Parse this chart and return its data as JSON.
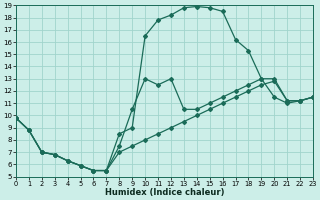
{
  "xlabel": "Humidex (Indice chaleur)",
  "xlim": [
    0,
    23
  ],
  "ylim": [
    5,
    19
  ],
  "xticks": [
    0,
    1,
    2,
    3,
    4,
    5,
    6,
    7,
    8,
    9,
    10,
    11,
    12,
    13,
    14,
    15,
    16,
    17,
    18,
    19,
    20,
    21,
    22,
    23
  ],
  "yticks": [
    5,
    6,
    7,
    8,
    9,
    10,
    11,
    12,
    13,
    14,
    15,
    16,
    17,
    18,
    19
  ],
  "bg_color": "#cceee8",
  "grid_color": "#a0d4cc",
  "line_color": "#1a6b58",
  "figsize": [
    3.2,
    2.0
  ],
  "dpi": 100,
  "lines": [
    {
      "x": [
        0,
        1,
        2,
        3,
        4,
        5,
        6,
        7,
        8,
        9,
        10,
        11,
        12,
        13,
        14,
        15,
        16,
        17,
        18,
        19,
        20,
        21,
        22,
        23
      ],
      "y": [
        9.8,
        8.8,
        7.0,
        6.8,
        6.3,
        5.9,
        5.5,
        5.5,
        7.5,
        10.5,
        13.0,
        12.5,
        13.0,
        10.5,
        10.5,
        11.0,
        11.5,
        12.0,
        12.5,
        13.0,
        13.0,
        11.2,
        11.2,
        11.5
      ]
    },
    {
      "x": [
        0,
        1,
        2,
        3,
        4,
        5,
        6,
        7,
        8,
        9,
        10,
        11,
        12,
        13,
        14,
        15,
        16,
        17,
        18,
        19,
        20,
        21,
        22,
        23
      ],
      "y": [
        9.8,
        8.8,
        7.0,
        6.8,
        6.3,
        5.9,
        5.5,
        5.5,
        8.5,
        9.0,
        16.5,
        17.8,
        18.2,
        18.8,
        18.9,
        18.8,
        18.5,
        16.2,
        15.3,
        13.0,
        11.5,
        11.0,
        11.2,
        11.5
      ]
    },
    {
      "x": [
        0,
        1,
        2,
        3,
        4,
        5,
        6,
        7,
        8,
        9,
        10,
        11,
        12,
        13,
        14,
        15,
        16,
        17,
        18,
        19,
        20,
        21,
        22,
        23
      ],
      "y": [
        9.8,
        8.8,
        7.0,
        6.8,
        6.3,
        5.9,
        5.5,
        5.5,
        7.0,
        7.5,
        8.0,
        8.5,
        9.0,
        9.5,
        10.0,
        10.5,
        11.0,
        11.5,
        12.0,
        12.5,
        12.8,
        11.2,
        11.2,
        11.5
      ]
    }
  ],
  "marker": "D",
  "markersize": 2.0,
  "linewidth": 0.9
}
